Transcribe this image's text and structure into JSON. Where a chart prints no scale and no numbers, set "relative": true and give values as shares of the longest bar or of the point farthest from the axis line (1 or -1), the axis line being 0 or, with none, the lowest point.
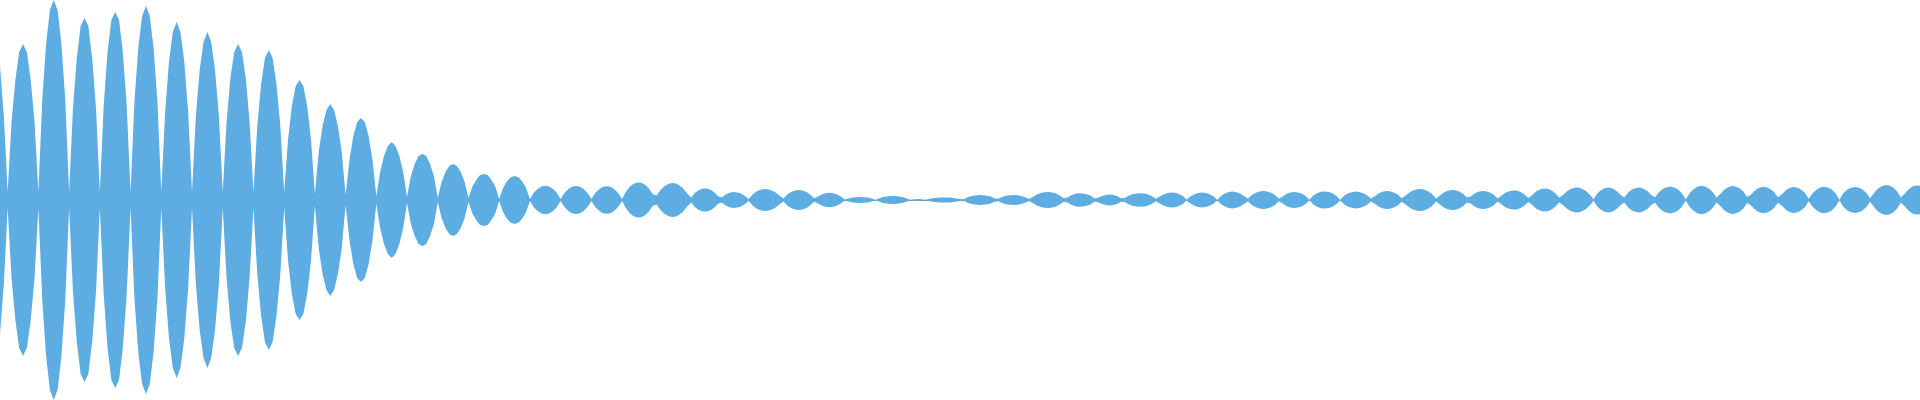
{
  "chart_data": {
    "type": "area",
    "relative": true,
    "tick_labels": false,
    "categories": [
      null,
      null,
      null,
      null,
      null,
      null,
      null,
      null,
      null,
      null,
      null,
      null,
      null,
      null,
      null,
      null,
      null,
      null,
      null,
      null,
      null,
      null,
      null,
      null,
      null,
      null,
      null,
      null,
      null,
      null,
      null,
      null,
      null,
      null,
      null,
      null,
      null,
      null,
      null,
      null,
      null,
      null,
      null,
      null,
      null,
      null,
      null,
      null,
      null,
      null,
      null,
      null,
      null,
      null,
      null,
      null,
      null,
      null,
      null,
      null,
      null,
      null,
      null,
      null,
      null,
      null,
      null,
      null,
      null,
      null,
      null,
      null,
      null,
      null,
      null,
      null,
      null,
      null,
      null,
      null,
      null,
      null,
      null,
      null,
      null,
      null,
      null,
      null,
      null,
      null,
      null,
      null,
      null,
      null,
      null,
      null,
      null,
      null,
      null,
      null,
      null,
      null,
      null,
      null,
      null,
      null,
      null,
      null,
      null,
      null,
      null,
      null,
      null,
      null,
      null,
      null,
      null,
      null,
      null,
      null,
      null,
      null,
      null,
      null,
      null,
      null,
      null,
      null,
      null,
      null,
      null,
      null,
      null,
      null,
      null,
      null,
      null,
      null,
      null,
      null,
      null,
      null,
      null,
      null,
      null,
      null,
      null,
      null,
      null,
      null,
      null,
      null,
      null,
      null,
      null,
      null,
      null,
      null,
      null,
      null,
      null,
      null,
      null,
      null,
      null,
      null,
      null,
      null,
      null,
      null,
      null,
      null,
      null,
      null,
      null,
      null,
      null,
      null,
      null,
      null,
      null,
      null,
      null,
      null,
      null,
      null,
      null,
      null,
      null,
      null,
      null,
      null,
      null,
      null,
      null,
      null,
      null,
      null,
      null,
      null,
      null,
      null,
      null,
      null,
      null,
      null,
      null,
      null,
      null,
      null,
      null,
      null,
      null,
      null,
      null,
      null,
      null,
      null,
      null,
      null,
      null,
      null,
      null,
      null,
      null,
      null,
      null,
      null,
      null,
      null,
      null,
      null,
      null,
      null,
      null,
      null,
      null,
      null,
      null,
      null,
      null,
      null,
      null,
      null,
      null,
      null,
      null,
      null,
      null,
      null,
      null,
      null,
      null,
      null,
      null,
      null,
      null,
      null,
      null,
      null,
      null,
      null,
      null,
      null,
      null,
      null,
      null,
      null,
      null,
      null,
      null,
      null,
      null,
      null,
      null,
      null,
      null,
      null,
      null,
      null,
      null,
      null,
      null,
      null,
      null,
      null,
      null,
      null,
      null,
      null,
      null,
      null,
      null,
      null,
      null,
      null,
      null,
      null,
      null,
      null,
      null,
      null,
      null,
      null,
      null,
      null,
      null,
      null,
      null,
      null,
      null,
      null,
      null,
      null,
      null,
      null,
      null,
      null,
      null,
      null,
      null,
      null,
      null,
      null,
      null,
      null,
      null,
      null,
      null,
      null,
      null,
      null,
      null,
      null,
      null,
      null,
      null,
      null,
      null,
      null,
      null,
      null,
      null,
      null,
      null,
      null,
      null,
      null,
      null,
      null,
      null,
      null,
      null,
      null,
      null,
      null,
      null,
      null,
      null,
      null,
      null,
      null,
      null,
      null,
      null,
      null,
      null,
      null,
      null,
      null,
      null,
      null,
      null,
      null,
      null,
      null,
      null,
      null,
      null,
      null,
      null,
      null,
      null,
      null,
      null,
      null,
      null,
      null,
      null,
      null,
      null,
      null,
      null,
      null,
      null,
      null,
      null,
      null,
      null,
      null,
      null,
      null,
      null,
      null,
      null,
      null,
      null,
      null,
      null,
      null,
      null,
      null,
      null,
      null,
      null,
      null,
      null,
      null,
      null,
      null,
      null,
      null,
      null,
      null,
      null,
      null,
      null,
      null,
      null,
      null,
      null,
      null,
      null,
      null,
      null,
      null,
      null,
      null,
      null,
      null,
      null,
      null,
      null,
      null,
      null,
      null,
      null,
      null,
      null,
      null,
      null,
      null,
      null,
      null,
      null,
      null,
      null,
      null,
      null,
      null,
      null,
      null,
      null,
      null,
      null,
      null,
      null,
      null,
      null,
      null,
      null,
      null,
      null,
      null,
      null,
      null,
      null,
      null,
      null,
      null,
      null,
      null,
      null,
      null,
      null,
      null,
      null,
      null,
      null,
      null,
      null,
      null,
      null,
      null,
      null,
      null,
      null,
      null,
      null,
      null,
      null
    ],
    "series": [
      {
        "color": "#5dade2",
        "values": [
          0.67,
          0.42,
          0.04,
          0.39,
          0.6,
          0.74,
          0.78,
          0.74,
          0.6,
          0.39,
          0.04,
          0.5,
          0.78,
          0.95,
          1.0,
          0.95,
          0.78,
          0.5,
          0.04,
          0.46,
          0.71,
          0.87,
          0.91,
          0.87,
          0.71,
          0.46,
          0.04,
          0.47,
          0.74,
          0.9,
          0.94,
          0.9,
          0.74,
          0.47,
          0.04,
          0.49,
          0.76,
          0.92,
          0.97,
          0.92,
          0.76,
          0.49,
          0.04,
          0.44,
          0.69,
          0.84,
          0.89,
          0.84,
          0.69,
          0.44,
          0.04,
          0.42,
          0.65,
          0.79,
          0.84,
          0.79,
          0.65,
          0.42,
          0.04,
          0.39,
          0.61,
          0.74,
          0.78,
          0.74,
          0.61,
          0.39,
          0.04,
          0.37,
          0.58,
          0.71,
          0.75,
          0.71,
          0.58,
          0.37,
          0.04,
          0.3,
          0.47,
          0.57,
          0.6,
          0.57,
          0.47,
          0.3,
          0.03,
          0.24,
          0.37,
          0.45,
          0.48,
          0.45,
          0.37,
          0.24,
          0.025,
          0.2,
          0.32,
          0.39,
          0.41,
          0.39,
          0.32,
          0.2,
          0.02,
          0.14,
          0.22,
          0.27,
          0.29,
          0.27,
          0.22,
          0.14,
          0.015,
          0.12,
          0.18,
          0.22,
          0.23,
          0.22,
          0.18,
          0.12,
          0.01,
          0.09,
          0.14,
          0.17,
          0.18,
          0.17,
          0.14,
          0.09,
          0.01,
          0.066,
          0.1,
          0.125,
          0.13,
          0.125,
          0.1,
          0.066,
          0.005,
          0.06,
          0.094,
          0.114,
          0.12,
          0.114,
          0.094,
          0.06,
          0.005,
          0.036,
          0.055,
          0.067,
          0.071,
          0.067,
          0.055,
          0.036,
          0.005,
          0.035,
          0.055,
          0.067,
          0.07,
          0.067,
          0.055,
          0.035,
          0.005,
          0.035,
          0.054,
          0.066,
          0.069,
          0.066,
          0.054,
          0.035,
          0.005,
          0.041,
          0.066,
          0.081,
          0.088,
          0.086,
          0.076,
          0.058,
          0.029,
          0.022,
          0.05,
          0.069,
          0.08,
          0.085,
          0.082,
          0.073,
          0.056,
          0.031,
          0.013,
          0.036,
          0.05,
          0.057,
          0.057,
          0.051,
          0.039,
          0.019,
          0.013,
          0.028,
          0.036,
          0.04,
          0.038,
          0.032,
          0.02,
          0.005,
          0.028,
          0.042,
          0.051,
          0.055,
          0.054,
          0.048,
          0.038,
          0.023,
          0.007,
          0.027,
          0.04,
          0.047,
          0.05,
          0.048,
          0.04,
          0.028,
          0.009,
          0.016,
          0.027,
          0.034,
          0.036,
          0.034,
          0.028,
          0.017,
          0.002,
          0.008,
          0.012,
          0.014,
          0.015,
          0.014,
          0.012,
          0.008,
          0.001,
          0.009,
          0.015,
          0.018,
          0.02,
          0.02,
          0.018,
          0.015,
          0.009,
          0.001,
          0.004,
          0.005,
          0.004,
          0.001,
          0.006,
          0.009,
          0.011,
          0.013,
          0.013,
          0.012,
          0.011,
          0.008,
          0.005,
          0.004,
          0.014,
          0.02,
          0.023,
          0.025,
          0.024,
          0.021,
          0.017,
          0.009,
          0.006,
          0.015,
          0.021,
          0.024,
          0.025,
          0.024,
          0.02,
          0.014,
          0.005,
          0.016,
          0.027,
          0.035,
          0.039,
          0.04,
          0.038,
          0.032,
          0.023,
          0.009,
          0.013,
          0.024,
          0.031,
          0.034,
          0.033,
          0.029,
          0.022,
          0.009,
          0.011,
          0.02,
          0.025,
          0.027,
          0.025,
          0.019,
          0.009,
          0.011,
          0.022,
          0.029,
          0.033,
          0.034,
          0.032,
          0.027,
          0.019,
          0.006,
          0.017,
          0.028,
          0.035,
          0.038,
          0.036,
          0.03,
          0.02,
          0.002,
          0.018,
          0.029,
          0.035,
          0.037,
          0.035,
          0.029,
          0.019,
          0.001,
          0.021,
          0.033,
          0.04,
          0.042,
          0.039,
          0.032,
          0.019,
          0.007,
          0.025,
          0.036,
          0.043,
          0.045,
          0.043,
          0.036,
          0.025,
          0.006,
          0.018,
          0.03,
          0.037,
          0.04,
          0.038,
          0.032,
          0.02,
          0.001,
          0.022,
          0.034,
          0.041,
          0.043,
          0.04,
          0.034,
          0.021,
          0.001,
          0.021,
          0.033,
          0.039,
          0.042,
          0.04,
          0.034,
          0.024,
          0.007,
          0.019,
          0.033,
          0.041,
          0.045,
          0.044,
          0.038,
          0.027,
          0.009,
          0.021,
          0.037,
          0.048,
          0.054,
          0.055,
          0.051,
          0.042,
          0.029,
          0.007,
          0.023,
          0.037,
          0.046,
          0.05,
          0.049,
          0.042,
          0.031,
          0.012,
          0.018,
          0.032,
          0.041,
          0.045,
          0.044,
          0.038,
          0.026,
          0.007,
          0.021,
          0.036,
          0.044,
          0.048,
          0.047,
          0.04,
          0.028,
          0.01,
          0.024,
          0.042,
          0.053,
          0.058,
          0.056,
          0.049,
          0.034,
          0.012,
          0.025,
          0.043,
          0.055,
          0.061,
          0.062,
          0.056,
          0.045,
          0.028,
          0.004,
          0.034,
          0.05,
          0.06,
          0.062,
          0.057,
          0.045,
          0.026,
          0.013,
          0.037,
          0.052,
          0.06,
          0.062,
          0.056,
          0.045,
          0.025,
          0.014,
          0.039,
          0.055,
          0.064,
          0.067,
          0.063,
          0.052,
          0.034,
          0.003,
          0.034,
          0.054,
          0.066,
          0.071,
          0.068,
          0.058,
          0.04,
          0.012,
          0.03,
          0.051,
          0.064,
          0.07,
          0.068,
          0.059,
          0.042,
          0.015,
          0.027,
          0.048,
          0.06,
          0.066,
          0.064,
          0.055,
          0.04,
          0.014,
          0.027,
          0.048,
          0.06,
          0.065,
          0.062,
          0.053,
          0.036,
          0.006,
          0.032,
          0.051,
          0.062,
          0.066,
          0.063,
          0.052,
          0.034,
          0.001,
          0.033,
          0.051,
          0.061,
          0.065,
          0.062,
          0.053,
          0.036,
          0.009,
          0.034,
          0.056,
          0.069,
          0.075,
          0.073,
          0.063,
          0.044,
          0.014,
          0.031,
          0.053,
          0.067,
          0.073,
          0.071
        ]
      },
      {
        "color": "#5dade2",
        "values": [
          -0.67,
          -0.42,
          -0.04,
          -0.39,
          -0.6,
          -0.74,
          -0.78,
          -0.74,
          -0.6,
          -0.39,
          -0.04,
          -0.5,
          -0.78,
          -0.95,
          -1.0,
          -0.95,
          -0.78,
          -0.5,
          -0.04,
          -0.46,
          -0.71,
          -0.87,
          -0.91,
          -0.87,
          -0.71,
          -0.46,
          -0.04,
          -0.47,
          -0.74,
          -0.9,
          -0.94,
          -0.9,
          -0.74,
          -0.47,
          -0.04,
          -0.49,
          -0.76,
          -0.92,
          -0.97,
          -0.92,
          -0.76,
          -0.49,
          -0.04,
          -0.44,
          -0.69,
          -0.84,
          -0.89,
          -0.84,
          -0.69,
          -0.44,
          -0.04,
          -0.42,
          -0.65,
          -0.79,
          -0.84,
          -0.79,
          -0.65,
          -0.42,
          -0.04,
          -0.39,
          -0.61,
          -0.74,
          -0.78,
          -0.74,
          -0.61,
          -0.39,
          -0.04,
          -0.37,
          -0.58,
          -0.71,
          -0.75,
          -0.71,
          -0.58,
          -0.37,
          -0.04,
          -0.3,
          -0.47,
          -0.57,
          -0.6,
          -0.57,
          -0.47,
          -0.3,
          -0.03,
          -0.24,
          -0.37,
          -0.45,
          -0.48,
          -0.45,
          -0.37,
          -0.24,
          -0.025,
          -0.2,
          -0.32,
          -0.39,
          -0.41,
          -0.39,
          -0.32,
          -0.2,
          -0.02,
          -0.14,
          -0.22,
          -0.27,
          -0.29,
          -0.27,
          -0.22,
          -0.14,
          -0.015,
          -0.12,
          -0.18,
          -0.22,
          -0.23,
          -0.22,
          -0.18,
          -0.12,
          -0.01,
          -0.09,
          -0.14,
          -0.17,
          -0.18,
          -0.17,
          -0.14,
          -0.09,
          -0.01,
          -0.066,
          -0.1,
          -0.125,
          -0.13,
          -0.125,
          -0.1,
          -0.066,
          -0.005,
          -0.06,
          -0.094,
          -0.114,
          -0.12,
          -0.114,
          -0.094,
          -0.06,
          -0.005,
          -0.036,
          -0.055,
          -0.067,
          -0.071,
          -0.067,
          -0.055,
          -0.036,
          -0.005,
          -0.035,
          -0.055,
          -0.067,
          -0.07,
          -0.067,
          -0.055,
          -0.035,
          -0.005,
          -0.035,
          -0.054,
          -0.066,
          -0.069,
          -0.066,
          -0.054,
          -0.035,
          -0.005,
          -0.041,
          -0.066,
          -0.081,
          -0.088,
          -0.086,
          -0.076,
          -0.058,
          -0.029,
          -0.022,
          -0.05,
          -0.069,
          -0.08,
          -0.085,
          -0.082,
          -0.073,
          -0.056,
          -0.031,
          -0.013,
          -0.036,
          -0.05,
          -0.057,
          -0.057,
          -0.051,
          -0.039,
          -0.019,
          -0.013,
          -0.028,
          -0.036,
          -0.04,
          -0.038,
          -0.032,
          -0.02,
          -0.005,
          -0.028,
          -0.042,
          -0.051,
          -0.055,
          -0.054,
          -0.048,
          -0.038,
          -0.023,
          -0.007,
          -0.027,
          -0.04,
          -0.047,
          -0.05,
          -0.048,
          -0.04,
          -0.028,
          -0.009,
          -0.016,
          -0.027,
          -0.034,
          -0.036,
          -0.034,
          -0.028,
          -0.017,
          -0.002,
          -0.008,
          -0.012,
          -0.014,
          -0.015,
          -0.014,
          -0.012,
          -0.008,
          -0.001,
          -0.009,
          -0.015,
          -0.018,
          -0.02,
          -0.02,
          -0.018,
          -0.015,
          -0.009,
          -0.001,
          -0.004,
          -0.005,
          -0.004,
          -0.001,
          -0.006,
          -0.009,
          -0.011,
          -0.013,
          -0.013,
          -0.012,
          -0.011,
          -0.008,
          -0.005,
          -0.004,
          -0.014,
          -0.02,
          -0.023,
          -0.025,
          -0.024,
          -0.021,
          -0.017,
          -0.009,
          -0.006,
          -0.015,
          -0.021,
          -0.024,
          -0.025,
          -0.024,
          -0.02,
          -0.014,
          -0.005,
          -0.016,
          -0.027,
          -0.035,
          -0.039,
          -0.04,
          -0.038,
          -0.032,
          -0.023,
          -0.009,
          -0.013,
          -0.024,
          -0.031,
          -0.034,
          -0.033,
          -0.029,
          -0.022,
          -0.009,
          -0.011,
          -0.02,
          -0.025,
          -0.027,
          -0.025,
          -0.019,
          -0.009,
          -0.011,
          -0.022,
          -0.029,
          -0.033,
          -0.034,
          -0.032,
          -0.027,
          -0.019,
          -0.006,
          -0.017,
          -0.028,
          -0.035,
          -0.038,
          -0.036,
          -0.03,
          -0.02,
          -0.002,
          -0.018,
          -0.029,
          -0.035,
          -0.037,
          -0.035,
          -0.029,
          -0.019,
          -0.001,
          -0.021,
          -0.033,
          -0.04,
          -0.042,
          -0.039,
          -0.032,
          -0.019,
          -0.007,
          -0.025,
          -0.036,
          -0.043,
          -0.045,
          -0.043,
          -0.036,
          -0.025,
          -0.006,
          -0.018,
          -0.03,
          -0.037,
          -0.04,
          -0.038,
          -0.032,
          -0.02,
          -0.001,
          -0.022,
          -0.034,
          -0.041,
          -0.043,
          -0.04,
          -0.034,
          -0.021,
          -0.001,
          -0.021,
          -0.033,
          -0.039,
          -0.042,
          -0.04,
          -0.034,
          -0.024,
          -0.007,
          -0.019,
          -0.033,
          -0.041,
          -0.045,
          -0.044,
          -0.038,
          -0.027,
          -0.009,
          -0.021,
          -0.037,
          -0.048,
          -0.054,
          -0.055,
          -0.051,
          -0.042,
          -0.029,
          -0.007,
          -0.023,
          -0.037,
          -0.046,
          -0.05,
          -0.049,
          -0.042,
          -0.031,
          -0.012,
          -0.018,
          -0.032,
          -0.041,
          -0.045,
          -0.044,
          -0.038,
          -0.026,
          -0.007,
          -0.021,
          -0.036,
          -0.044,
          -0.048,
          -0.047,
          -0.04,
          -0.028,
          -0.01,
          -0.024,
          -0.042,
          -0.053,
          -0.058,
          -0.056,
          -0.049,
          -0.034,
          -0.012,
          -0.025,
          -0.043,
          -0.055,
          -0.061,
          -0.062,
          -0.056,
          -0.045,
          -0.028,
          -0.004,
          -0.034,
          -0.05,
          -0.06,
          -0.062,
          -0.057,
          -0.045,
          -0.026,
          -0.013,
          -0.037,
          -0.052,
          -0.06,
          -0.062,
          -0.056,
          -0.045,
          -0.025,
          -0.014,
          -0.039,
          -0.055,
          -0.064,
          -0.067,
          -0.063,
          -0.052,
          -0.034,
          -0.003,
          -0.034,
          -0.054,
          -0.066,
          -0.071,
          -0.068,
          -0.058,
          -0.04,
          -0.012,
          -0.03,
          -0.051,
          -0.064,
          -0.07,
          -0.068,
          -0.059,
          -0.042,
          -0.015,
          -0.027,
          -0.048,
          -0.06,
          -0.066,
          -0.064,
          -0.055,
          -0.04,
          -0.014,
          -0.027,
          -0.048,
          -0.06,
          -0.065,
          -0.062,
          -0.053,
          -0.036,
          -0.006,
          -0.032,
          -0.051,
          -0.062,
          -0.066,
          -0.063,
          -0.052,
          -0.034,
          -0.001,
          -0.033,
          -0.051,
          -0.061,
          -0.065,
          -0.062,
          -0.053,
          -0.036,
          -0.009,
          -0.034,
          -0.056,
          -0.069,
          -0.075,
          -0.073,
          -0.063,
          -0.044,
          -0.014,
          -0.031,
          -0.053,
          -0.067,
          -0.073,
          -0.071
        ]
      }
    ]
  }
}
